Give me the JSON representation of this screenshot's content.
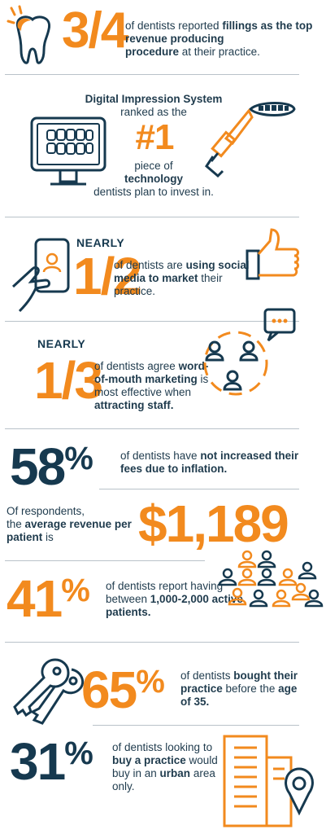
{
  "s1": {
    "big": "3/4",
    "pre": "of dentists reported ",
    "b1": "fillings",
    "mid": " as the top revenue producing",
    "b2": "procedure",
    "post": " at their practice."
  },
  "s2": {
    "line1": "Digital Impression System",
    "line2": "ranked as the",
    "big": "#1",
    "line3": "piece of",
    "line4": "technology",
    "line5": "dentists plan to invest in."
  },
  "s3": {
    "nearly": "NEARLY",
    "big": "1/2",
    "pre": "of dentists are ",
    "b1": "using social media to market",
    "post": " their practice."
  },
  "s4": {
    "nearly": "NEARLY",
    "big": "1/3",
    "pre": "of dentists agree ",
    "b1": "word-of-mouth marketing",
    "mid": " is most effective when ",
    "b2": "attracting staff."
  },
  "s5": {
    "big": "58",
    "pct": "%",
    "pre": "of dentists have ",
    "b1": "not increased their fees due to inflation."
  },
  "s6": {
    "l1": "Of respondents,",
    "l2pre": "the ",
    "b1": "average revenue per patient",
    "post": " is",
    "big": "$1,189"
  },
  "s7": {
    "big": "41",
    "pct": "%",
    "pre": "of dentists report having between ",
    "b1": "1,000-2,000 active patients."
  },
  "s8": {
    "big": "65",
    "pct": "%",
    "pre": "of dentists ",
    "b1": "bought their practice",
    "mid": " before the ",
    "b2": "age of 35."
  },
  "s9": {
    "big": "31",
    "pct": "%",
    "pre": "of dentists looking to ",
    "b1": "buy a practice",
    "mid": " would buy in an ",
    "b2": "urban",
    "post": " area only."
  },
  "colors": {
    "orange": "#f28a1e",
    "navy": "#16394f",
    "rule": "#b9c2c9"
  }
}
